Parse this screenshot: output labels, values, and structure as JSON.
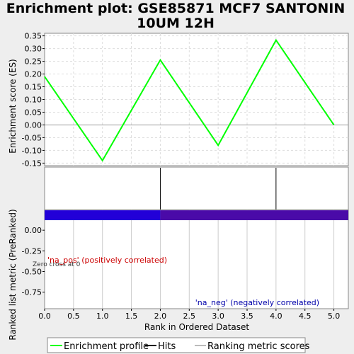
{
  "chart_data": {
    "type": "line",
    "title": "Enrichment plot: GSE85871 MCF7 SANTONIN 10UM 12H",
    "title_lines": [
      "Enrichment plot: GSE85871 MCF7 SANTONIN",
      "10UM 12H"
    ],
    "xlabel": "Rank in Ordered Dataset",
    "xlim": [
      0,
      5.25
    ],
    "x_ticks": [
      "0.0",
      "0.5",
      "1.0",
      "1.5",
      "2.0",
      "2.5",
      "3.0",
      "3.5",
      "4.0",
      "4.5",
      "5.0"
    ],
    "x_tick_values": [
      0,
      0.5,
      1,
      1.5,
      2,
      2.5,
      3,
      3.5,
      4,
      4.5,
      5
    ],
    "enrichment_panel": {
      "ylabel": "Enrichment score (ES)",
      "ylim": [
        -0.16,
        0.36
      ],
      "y_ticks": [
        "0.35",
        "0.30",
        "0.25",
        "0.20",
        "0.15",
        "0.10",
        "0.05",
        "0.00",
        "-0.05",
        "-0.10",
        "-0.15"
      ],
      "y_tick_values": [
        0.35,
        0.3,
        0.25,
        0.2,
        0.15,
        0.1,
        0.05,
        0.0,
        -0.05,
        -0.1,
        -0.15
      ],
      "grid": true,
      "series": [
        {
          "color": "#00ff00",
          "x": [
            0,
            1,
            2,
            3,
            4,
            5
          ],
          "y": [
            0.19,
            -0.14,
            0.255,
            -0.08,
            0.333,
            0.0
          ]
        }
      ]
    },
    "hits": [
      2,
      4
    ],
    "ranking_panel": {
      "ylabel": "Ranked list metric (PreRanked)",
      "ylim": [
        -0.95,
        0.25
      ],
      "y_ticks": [
        "0.00",
        "-0.25",
        "-0.50",
        "-0.75"
      ],
      "y_tick_values": [
        0.0,
        -0.25,
        -0.5,
        -0.75
      ],
      "band_segments": [
        {
          "x0": 0,
          "x1": 2,
          "color": "#2200d8"
        },
        {
          "x0": 2,
          "x1": 5.25,
          "color": "#4a0aa8"
        }
      ],
      "zero_cross_label": "Zero cross at 0",
      "pos_label": "'na_pos' (positively correlated)",
      "neg_label": "'na_neg' (negatively correlated)"
    },
    "legend": {
      "placement": "bottom",
      "items": [
        {
          "label": "Enrichment profile",
          "color": "#00ff00",
          "kind": "line"
        },
        {
          "label": "Hits",
          "color": "#000000",
          "kind": "line"
        },
        {
          "label": "Ranking metric scores",
          "color": "#bbbbbb",
          "kind": "line"
        }
      ]
    }
  }
}
